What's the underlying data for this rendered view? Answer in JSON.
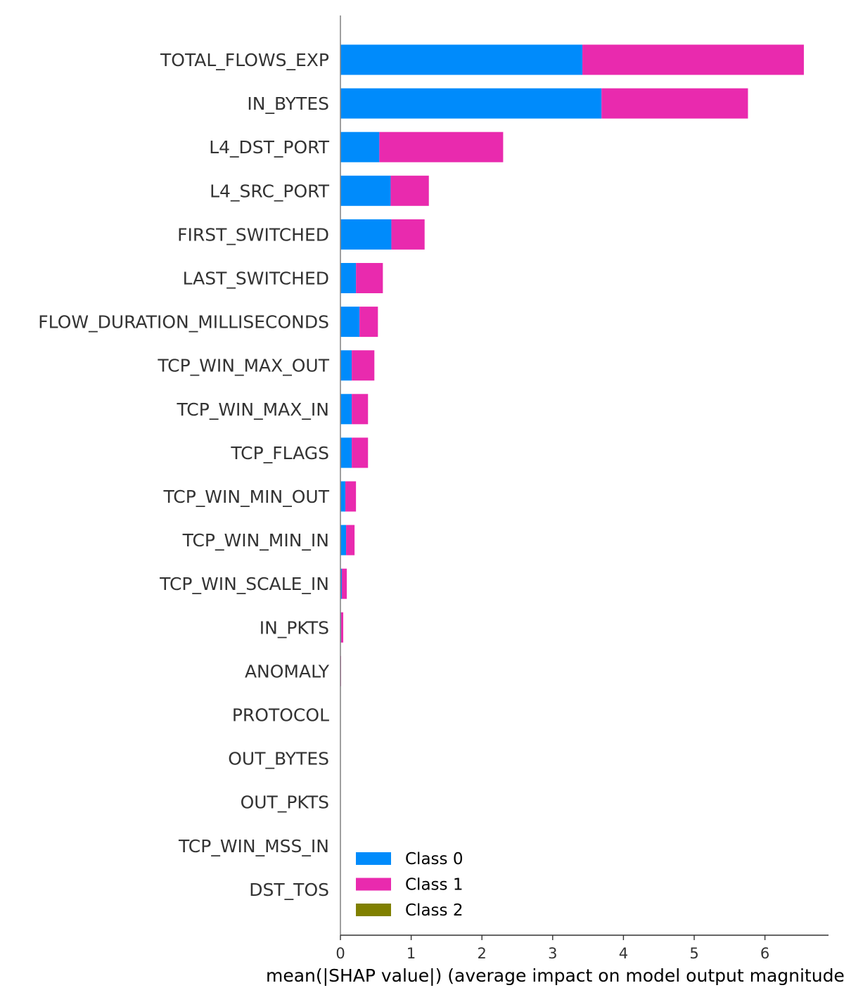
{
  "chart_data": {
    "type": "bar",
    "stacked": true,
    "orientation": "horizontal",
    "categories": [
      "TOTAL_FLOWS_EXP",
      "IN_BYTES",
      "L4_DST_PORT",
      "L4_SRC_PORT",
      "FIRST_SWITCHED",
      "LAST_SWITCHED",
      "FLOW_DURATION_MILLISECONDS",
      "TCP_WIN_MAX_OUT",
      "TCP_WIN_MAX_IN",
      "TCP_FLAGS",
      "TCP_WIN_MIN_OUT",
      "TCP_WIN_MIN_IN",
      "TCP_WIN_SCALE_IN",
      "IN_PKTS",
      "ANOMALY",
      "PROTOCOL",
      "OUT_BYTES",
      "OUT_PKTS",
      "TCP_WIN_MSS_IN",
      "DST_TOS"
    ],
    "series": [
      {
        "name": "Class 0",
        "color": "#008bfb",
        "values": [
          3.42,
          3.69,
          0.55,
          0.71,
          0.72,
          0.22,
          0.27,
          0.16,
          0.16,
          0.16,
          0.07,
          0.08,
          0.02,
          0.01,
          0.0,
          0.0,
          0.0,
          0.0,
          0.0,
          0.0
        ]
      },
      {
        "name": "Class 1",
        "color": "#e92aae",
        "values": [
          3.13,
          2.07,
          1.75,
          0.54,
          0.47,
          0.38,
          0.26,
          0.32,
          0.23,
          0.23,
          0.15,
          0.12,
          0.07,
          0.03,
          0.01,
          0.0,
          0.0,
          0.0,
          0.0,
          0.0
        ]
      },
      {
        "name": "Class 2",
        "color": "#808000",
        "values": [
          0,
          0,
          0,
          0,
          0,
          0,
          0,
          0,
          0,
          0,
          0,
          0,
          0,
          0,
          0,
          0,
          0,
          0,
          0,
          0
        ]
      }
    ],
    "xlabel": "mean(|SHAP value|) (average impact on model output magnitude)",
    "xlim": [
      0,
      6.9
    ],
    "xticks": [
      0,
      1,
      2,
      3,
      4,
      5,
      6
    ],
    "legend": "lower-left",
    "grid": false
  }
}
